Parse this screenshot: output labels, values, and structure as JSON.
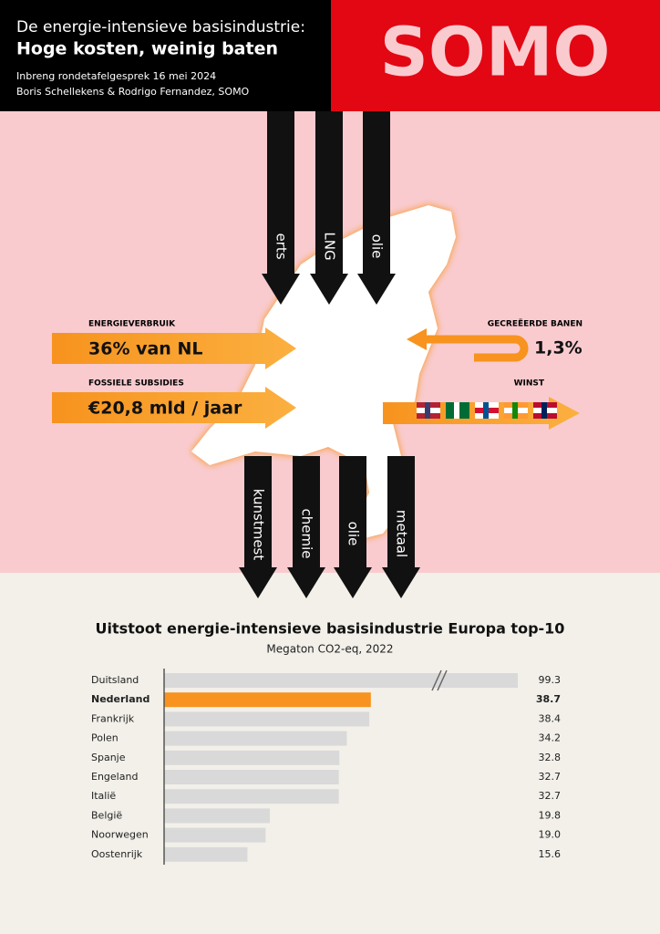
{
  "header": {
    "line1": "De energie-intensieve basisindustrie:",
    "title": "Hoge kosten, weinig baten",
    "subtitle": "Inbreng rondetafelgesprek 16 mei 2024",
    "authors": "Boris Schellekens & Rodrigo Fernandez, SOMO",
    "logo": "SOMO"
  },
  "infographic": {
    "inputs": [
      "erts",
      "LNG",
      "olie"
    ],
    "outputs": [
      "kunstmest",
      "chemie",
      "olie",
      "metaal"
    ],
    "energy": {
      "label": "ENERGIEVERBRUIK",
      "value": "36% van NL"
    },
    "subsidies": {
      "label": "FOSSIELE SUBSIDIES",
      "value": "€20,8 mld / jaar"
    },
    "jobs": {
      "label": "GECREËERDE BANEN",
      "value": "1,3%"
    },
    "profit": {
      "label": "WINST"
    }
  },
  "chart_data": {
    "type": "hbar",
    "title": "Uitstoot energie-intensieve basisindustrie Europa top-10",
    "subtitle": "Megaton CO2-eq, 2022",
    "categories": [
      "Duitsland",
      "Nederland",
      "Frankrijk",
      "Polen",
      "Spanje",
      "Engeland",
      "Italië",
      "België",
      "Noorwegen",
      "Oostenrijk"
    ],
    "values": [
      99.3,
      38.7,
      38.4,
      34.2,
      32.8,
      32.7,
      32.7,
      19.8,
      19.0,
      15.6
    ],
    "value_labels": [
      "99.3",
      "38.7",
      "38.4",
      "34.2",
      "32.8",
      "32.7",
      "32.7",
      "19.8",
      "19.0",
      "15.6"
    ],
    "colors": [
      "#d9d9d9",
      "#f7931e",
      "#d9d9d9",
      "#d9d9d9",
      "#d9d9d9",
      "#d9d9d9",
      "#d9d9d9",
      "#d9d9d9",
      "#d9d9d9",
      "#d9d9d9"
    ],
    "highlight_color": "#f7931e",
    "xlim": [
      0,
      66.2
    ],
    "axis_break": true
  }
}
